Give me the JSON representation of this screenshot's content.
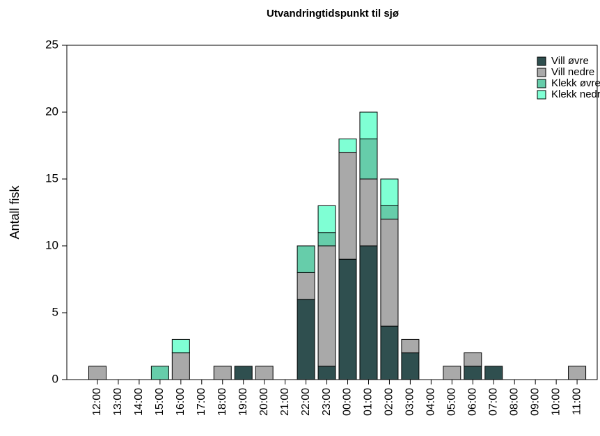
{
  "chart_data": {
    "type": "stacked-bar",
    "title": "Utvandringtidspunkt til sjø",
    "y_label": "Antall fisk",
    "categories": [
      "12:00",
      "13:00",
      "14:00",
      "15:00",
      "16:00",
      "17:00",
      "18:00",
      "19:00",
      "20:00",
      "21:00",
      "22:00",
      "23:00",
      "00:00",
      "01:00",
      "02:00",
      "03:00",
      "04:00",
      "05:00",
      "06:00",
      "07:00",
      "08:00",
      "09:00",
      "10:00",
      "11:00"
    ],
    "series": [
      {
        "name": "Vill øvre",
        "color": "#2f4f4f",
        "values": [
          0,
          0,
          0,
          0,
          0,
          0,
          0,
          1,
          0,
          0,
          6,
          1,
          9,
          10,
          4,
          2,
          0,
          0,
          1,
          1,
          0,
          0,
          0,
          0
        ]
      },
      {
        "name": "Vill nedre",
        "color": "#a9a9a9",
        "values": [
          1,
          0,
          0,
          0,
          2,
          0,
          1,
          0,
          1,
          0,
          2,
          9,
          8,
          5,
          8,
          1,
          0,
          1,
          1,
          0,
          0,
          0,
          0,
          1
        ]
      },
      {
        "name": "Klekk øvre",
        "color": "#66cdaa",
        "values": [
          0,
          0,
          0,
          1,
          0,
          0,
          0,
          0,
          0,
          0,
          2,
          1,
          0,
          3,
          1,
          0,
          0,
          0,
          0,
          0,
          0,
          0,
          0,
          0
        ]
      },
      {
        "name": "Klekk nedre",
        "color": "#7fffd4",
        "values": [
          0,
          0,
          0,
          0,
          1,
          0,
          0,
          0,
          0,
          0,
          0,
          2,
          1,
          2,
          2,
          0,
          0,
          0,
          0,
          0,
          0,
          0,
          0,
          0
        ]
      }
    ],
    "ylim": [
      0,
      25
    ],
    "yticks": [
      0,
      5,
      10,
      15,
      20,
      25
    ],
    "legend": "top-right"
  }
}
